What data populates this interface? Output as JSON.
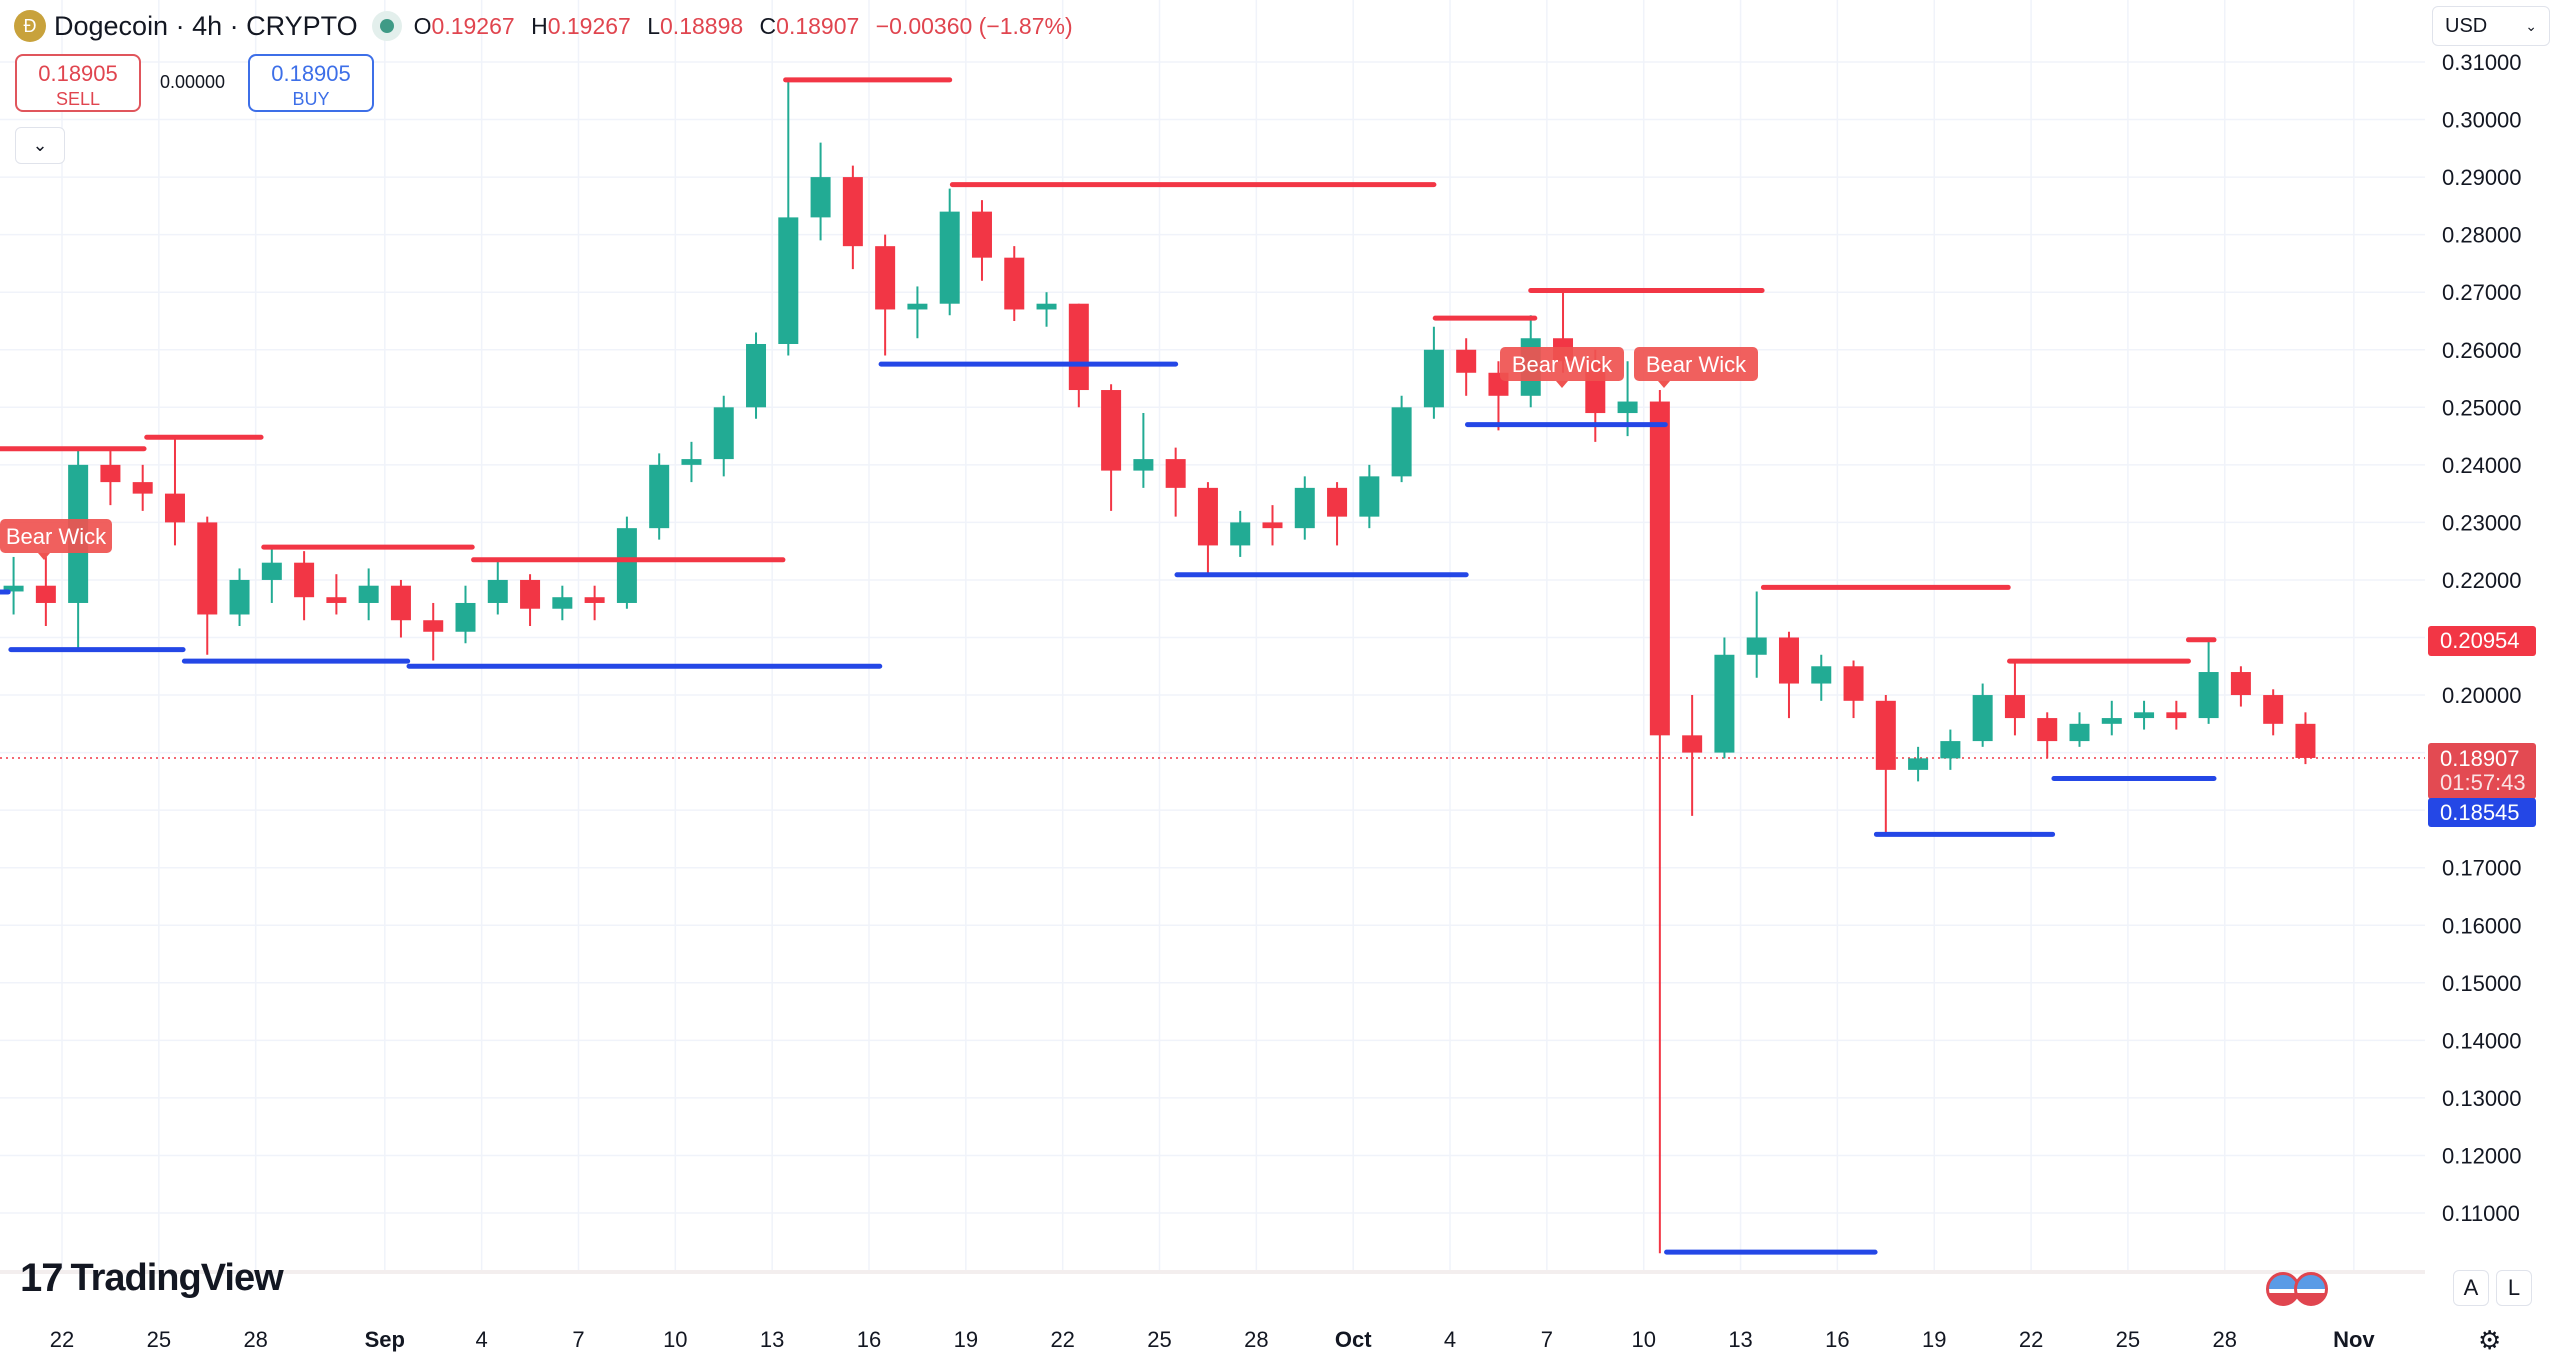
{
  "header": {
    "symbol_title": "Dogecoin · 4h · CRYPTO",
    "logo_icon": "dogecoin-logo-icon",
    "open_label": "O",
    "open": "0.19267",
    "high_label": "H",
    "high": "0.19267",
    "low_label": "L",
    "low": "0.18898",
    "close_label": "C",
    "close": "0.18907",
    "change": "−0.00360 (−1.87%)"
  },
  "trade": {
    "sell_price": "0.18905",
    "sell_label": "SELL",
    "spread": "0.00000",
    "buy_price": "0.18905",
    "buy_label": "BUY"
  },
  "currency": "USD",
  "price_badges": {
    "resistance": "0.20954",
    "last_price": "0.18907",
    "countdown": "01:57:43",
    "support": "0.18545"
  },
  "annotations": [
    "Bear Wick",
    "Bear Wick",
    "Bear Wick"
  ],
  "footer": {
    "brand": "TradingView",
    "auto_label": "A",
    "log_label": "L"
  },
  "colors": {
    "up": "#22ab94",
    "down": "#f23645",
    "resistance": "#f23645",
    "support": "#2447e6",
    "grid": "#f0f3fa"
  },
  "chart_data": {
    "type": "candlestick",
    "ylim": [
      0.1,
      0.31
    ],
    "y_ticks": [
      "0.31000",
      "0.30000",
      "0.29000",
      "0.28000",
      "0.27000",
      "0.26000",
      "0.25000",
      "0.24000",
      "0.23000",
      "0.22000",
      "0.20000",
      "0.17000",
      "0.16000",
      "0.15000",
      "0.14000",
      "0.13000",
      "0.12000",
      "0.11000"
    ],
    "x_ticks": [
      {
        "label": "22",
        "date": "08-22"
      },
      {
        "label": "25",
        "date": "08-25"
      },
      {
        "label": "28",
        "date": "08-28"
      },
      {
        "label": "Sep",
        "date": "09-01",
        "month": true
      },
      {
        "label": "4",
        "date": "09-04"
      },
      {
        "label": "7",
        "date": "09-07"
      },
      {
        "label": "10",
        "date": "09-10"
      },
      {
        "label": "13",
        "date": "09-13"
      },
      {
        "label": "16",
        "date": "09-16"
      },
      {
        "label": "19",
        "date": "09-19"
      },
      {
        "label": "22",
        "date": "09-22"
      },
      {
        "label": "25",
        "date": "09-25"
      },
      {
        "label": "28",
        "date": "09-28"
      },
      {
        "label": "Oct",
        "date": "10-01",
        "month": true
      },
      {
        "label": "4",
        "date": "10-04"
      },
      {
        "label": "7",
        "date": "10-07"
      },
      {
        "label": "10",
        "date": "10-10"
      },
      {
        "label": "13",
        "date": "10-13"
      },
      {
        "label": "16",
        "date": "10-16"
      },
      {
        "label": "19",
        "date": "10-19"
      },
      {
        "label": "22",
        "date": "10-22"
      },
      {
        "label": "25",
        "date": "10-25"
      },
      {
        "label": "28",
        "date": "10-28"
      },
      {
        "label": "Nov",
        "date": "11-01",
        "month": true
      }
    ],
    "candles": [
      [
        "08-20",
        0.218,
        0.224,
        0.214,
        0.219
      ],
      [
        "08-21",
        0.219,
        0.224,
        0.212,
        0.216
      ],
      [
        "08-22",
        0.216,
        0.243,
        0.208,
        0.24
      ],
      [
        "08-23",
        0.24,
        0.243,
        0.233,
        0.237
      ],
      [
        "08-24",
        0.237,
        0.24,
        0.232,
        0.235
      ],
      [
        "08-25",
        0.235,
        0.245,
        0.226,
        0.23
      ],
      [
        "08-26",
        0.23,
        0.231,
        0.207,
        0.214
      ],
      [
        "08-27",
        0.214,
        0.222,
        0.212,
        0.22
      ],
      [
        "08-28",
        0.22,
        0.2255,
        0.216,
        0.223
      ],
      [
        "08-29",
        0.223,
        0.225,
        0.213,
        0.217
      ],
      [
        "08-30",
        0.217,
        0.221,
        0.214,
        0.216
      ],
      [
        "08-31",
        0.216,
        0.222,
        0.213,
        0.219
      ],
      [
        "09-01",
        0.219,
        0.22,
        0.21,
        0.213
      ],
      [
        "09-02",
        0.213,
        0.216,
        0.206,
        0.211
      ],
      [
        "09-03",
        0.211,
        0.219,
        0.209,
        0.216
      ],
      [
        "09-04",
        0.216,
        0.2235,
        0.214,
        0.22
      ],
      [
        "09-05",
        0.22,
        0.221,
        0.212,
        0.215
      ],
      [
        "09-06",
        0.215,
        0.219,
        0.213,
        0.217
      ],
      [
        "09-07",
        0.217,
        0.219,
        0.213,
        0.216
      ],
      [
        "09-08",
        0.216,
        0.231,
        0.215,
        0.229
      ],
      [
        "09-09",
        0.229,
        0.242,
        0.227,
        0.24
      ],
      [
        "09-10",
        0.24,
        0.244,
        0.237,
        0.241
      ],
      [
        "09-11",
        0.241,
        0.252,
        0.238,
        0.25
      ],
      [
        "09-12",
        0.25,
        0.263,
        0.248,
        0.261
      ],
      [
        "09-13",
        0.261,
        0.307,
        0.259,
        0.283
      ],
      [
        "09-14",
        0.283,
        0.296,
        0.279,
        0.29
      ],
      [
        "09-15",
        0.29,
        0.292,
        0.274,
        0.278
      ],
      [
        "09-16",
        0.278,
        0.28,
        0.259,
        0.267
      ],
      [
        "09-17",
        0.267,
        0.271,
        0.262,
        0.268
      ],
      [
        "09-18",
        0.268,
        0.288,
        0.266,
        0.284
      ],
      [
        "09-19",
        0.284,
        0.286,
        0.272,
        0.276
      ],
      [
        "09-20",
        0.276,
        0.278,
        0.265,
        0.267
      ],
      [
        "09-21",
        0.267,
        0.27,
        0.264,
        0.268
      ],
      [
        "09-22",
        0.268,
        0.268,
        0.25,
        0.253
      ],
      [
        "09-23",
        0.253,
        0.254,
        0.232,
        0.239
      ],
      [
        "09-24",
        0.239,
        0.249,
        0.236,
        0.241
      ],
      [
        "09-25",
        0.241,
        0.243,
        0.231,
        0.236
      ],
      [
        "09-26",
        0.236,
        0.237,
        0.221,
        0.226
      ],
      [
        "09-27",
        0.226,
        0.232,
        0.224,
        0.23
      ],
      [
        "09-28",
        0.23,
        0.233,
        0.226,
        0.229
      ],
      [
        "09-29",
        0.229,
        0.238,
        0.227,
        0.236
      ],
      [
        "09-30",
        0.236,
        0.237,
        0.226,
        0.231
      ],
      [
        "10-01",
        0.231,
        0.24,
        0.229,
        0.238
      ],
      [
        "10-02",
        0.238,
        0.252,
        0.237,
        0.25
      ],
      [
        "10-03",
        0.25,
        0.264,
        0.248,
        0.26
      ],
      [
        "10-04",
        0.26,
        0.262,
        0.252,
        0.256
      ],
      [
        "10-05",
        0.256,
        0.258,
        0.246,
        0.252
      ],
      [
        "10-06",
        0.252,
        0.266,
        0.25,
        0.262
      ],
      [
        "10-07",
        0.262,
        0.27,
        0.256,
        0.258
      ],
      [
        "10-08",
        0.258,
        0.26,
        0.244,
        0.249
      ],
      [
        "10-09",
        0.249,
        0.258,
        0.245,
        0.251
      ],
      [
        "10-10",
        0.251,
        0.253,
        0.103,
        0.193
      ],
      [
        "10-11",
        0.193,
        0.2,
        0.179,
        0.19
      ],
      [
        "10-12",
        0.19,
        0.21,
        0.189,
        0.207
      ],
      [
        "10-13",
        0.207,
        0.218,
        0.203,
        0.21
      ],
      [
        "10-14",
        0.21,
        0.211,
        0.196,
        0.202
      ],
      [
        "10-15",
        0.202,
        0.207,
        0.199,
        0.205
      ],
      [
        "10-16",
        0.205,
        0.206,
        0.196,
        0.199
      ],
      [
        "10-17",
        0.199,
        0.2,
        0.176,
        0.187
      ],
      [
        "10-18",
        0.187,
        0.191,
        0.185,
        0.189
      ],
      [
        "10-19",
        0.189,
        0.194,
        0.187,
        0.192
      ],
      [
        "10-20",
        0.192,
        0.202,
        0.191,
        0.2
      ],
      [
        "10-21",
        0.2,
        0.2059,
        0.193,
        0.196
      ],
      [
        "10-22",
        0.196,
        0.197,
        0.189,
        0.192
      ],
      [
        "10-23",
        0.192,
        0.197,
        0.191,
        0.195
      ],
      [
        "10-24",
        0.195,
        0.199,
        0.193,
        0.196
      ],
      [
        "10-25",
        0.196,
        0.199,
        0.194,
        0.197
      ],
      [
        "10-26",
        0.197,
        0.199,
        0.194,
        0.196
      ],
      [
        "10-27",
        0.196,
        0.2096,
        0.195,
        0.204
      ],
      [
        "10-28",
        0.204,
        0.205,
        0.198,
        0.2
      ],
      [
        "10-29",
        0.2,
        0.201,
        0.193,
        0.195
      ],
      [
        "10-30",
        0.195,
        0.197,
        0.188,
        0.18907
      ]
    ],
    "resistance_levels": [
      {
        "price": 0.2428,
        "from": "08-20 02:00",
        "to": "08-24 13:00"
      },
      {
        "price": 0.2448,
        "from": "08-24 15:00",
        "to": "08-28 04:00"
      },
      {
        "price": 0.2257,
        "from": "08-28 06:00",
        "to": "09-03 17:00"
      },
      {
        "price": 0.2235,
        "from": "09-03 18:00",
        "to": "09-13 08:00"
      },
      {
        "price": 0.3069,
        "from": "09-13 10:00",
        "to": "09-18 12:00"
      },
      {
        "price": 0.2887,
        "from": "09-18 14:00",
        "to": "10-03 12:00"
      },
      {
        "price": 0.2655,
        "from": "10-03 13:00",
        "to": "10-06 15:00"
      },
      {
        "price": 0.2703,
        "from": "10-06 12:00",
        "to": "10-13 16:00"
      },
      {
        "price": 0.2187,
        "from": "10-13 17:00",
        "to": "10-21 07:00"
      },
      {
        "price": 0.2059,
        "from": "10-21 08:00",
        "to": "10-26 21:00"
      },
      {
        "price": 0.2096,
        "from": "10-26 21:00",
        "to": "10-27 16:00"
      }
    ],
    "support_levels": [
      {
        "price": 0.2179,
        "from": "08-20 00:00",
        "to": "08-20 08:00"
      },
      {
        "price": 0.2079,
        "from": "08-20 10:00",
        "to": "08-25 18:00"
      },
      {
        "price": 0.2059,
        "from": "08-25 19:00",
        "to": "09-01 17:00"
      },
      {
        "price": 0.205,
        "from": "09-01 18:00",
        "to": "09-16 08:00"
      },
      {
        "price": 0.2575,
        "from": "09-16 09:00",
        "to": "09-25 12:00"
      },
      {
        "price": 0.2209,
        "from": "09-25 13:00",
        "to": "10-04 12:00"
      },
      {
        "price": 0.247,
        "from": "10-04 13:00",
        "to": "10-10 16:00"
      },
      {
        "price": 0.1032,
        "from": "10-10 17:00",
        "to": "10-17 04:00"
      },
      {
        "price": 0.1758,
        "from": "10-17 05:00",
        "to": "10-22 16:00"
      },
      {
        "price": 0.1855,
        "from": "10-22 17:00",
        "to": "10-27 16:00"
      }
    ],
    "last_price": 0.18907
  }
}
